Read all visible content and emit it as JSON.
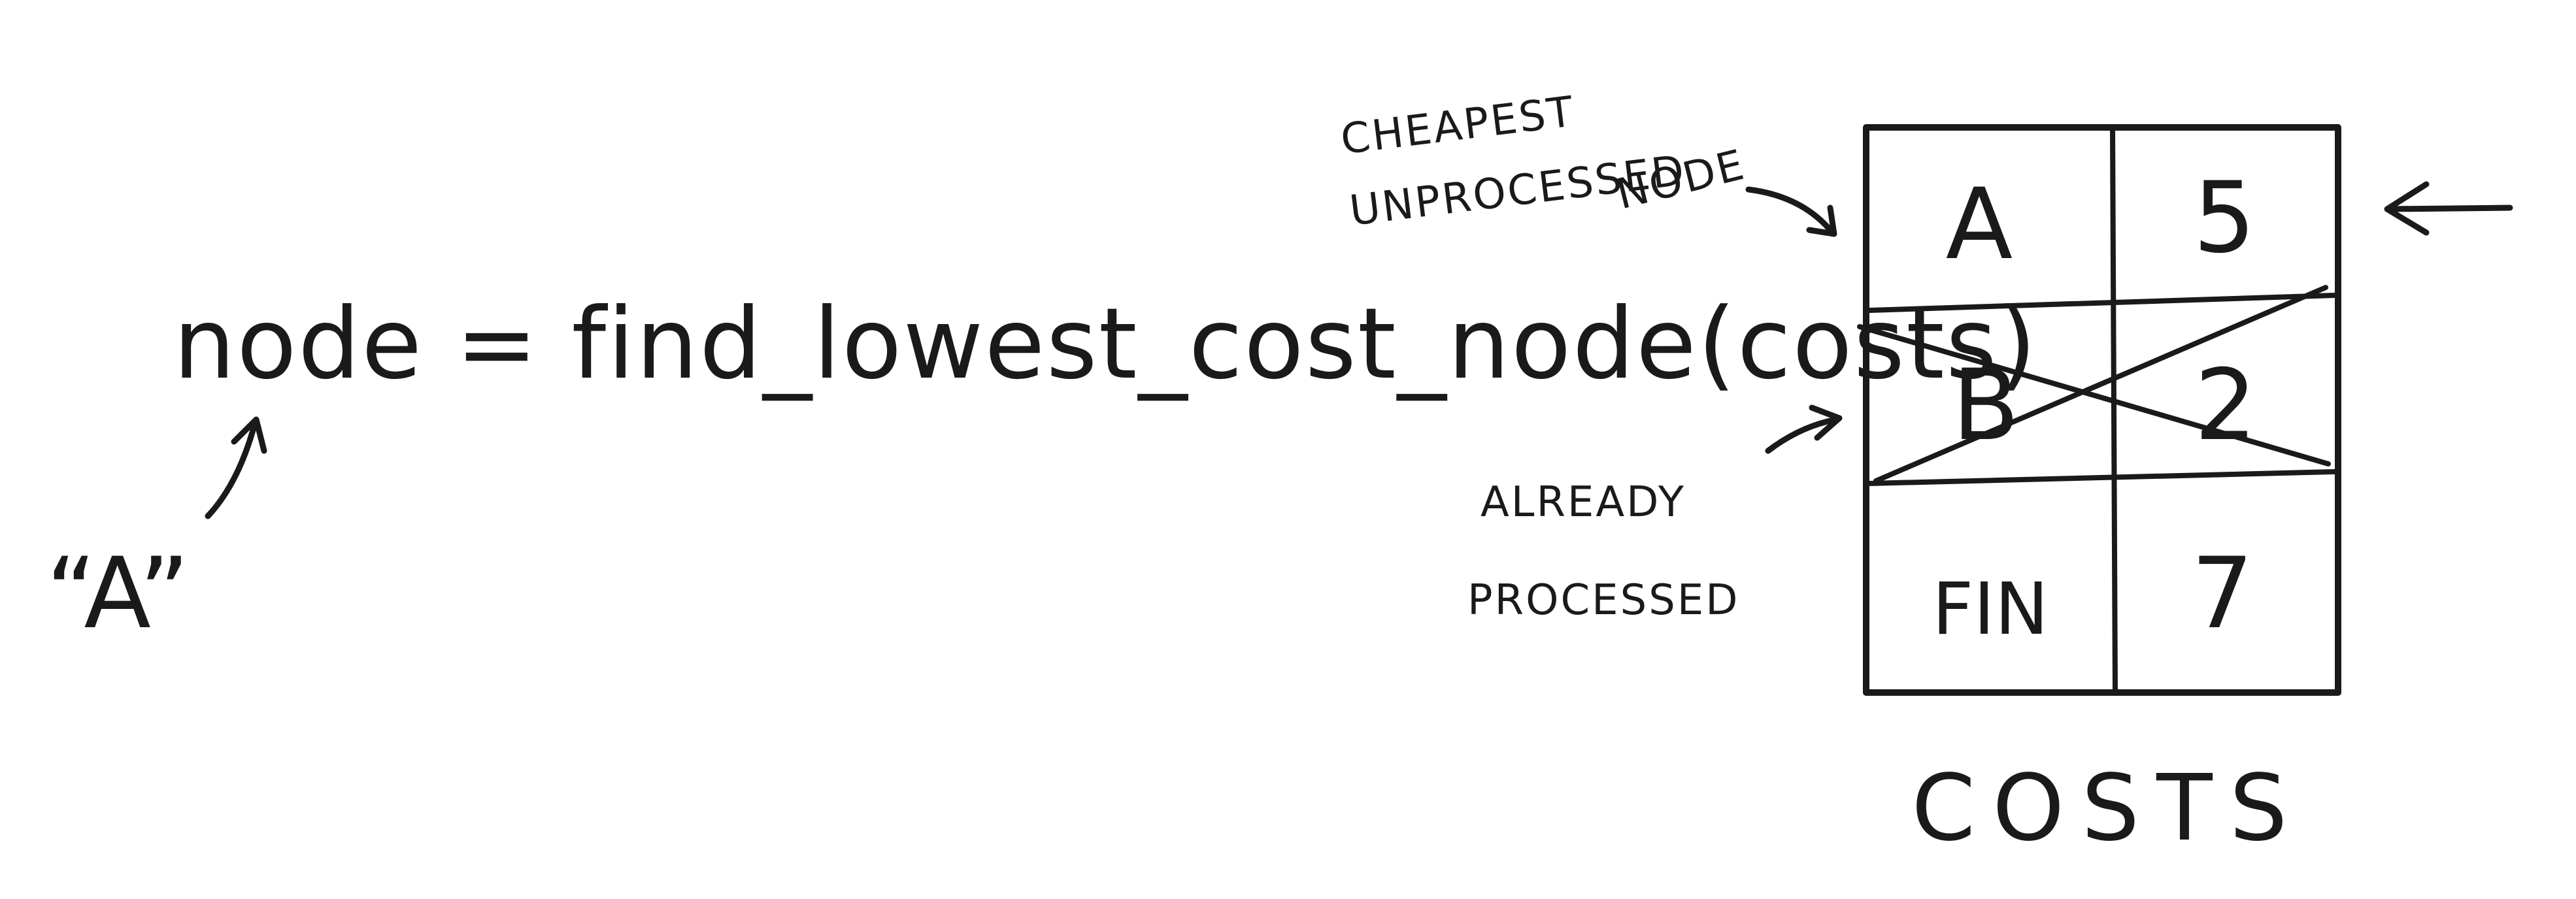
{
  "code_line": "node = find_lowest_cost_node(costs)",
  "return_value": "“A”",
  "annotations": {
    "cheapest_line1": "CHEAPEST",
    "cheapest_line2": "UNPROCESSED",
    "cheapest_line3": "NODE",
    "processed_line1": "ALREADY",
    "processed_line2": "PROCESSED"
  },
  "table": {
    "caption": "COSTS",
    "rows": [
      {
        "node": "A",
        "cost": "5",
        "processed": false
      },
      {
        "node": "B",
        "cost": "2",
        "processed": true
      },
      {
        "node": "FIN",
        "cost": "7",
        "processed": false
      }
    ]
  }
}
